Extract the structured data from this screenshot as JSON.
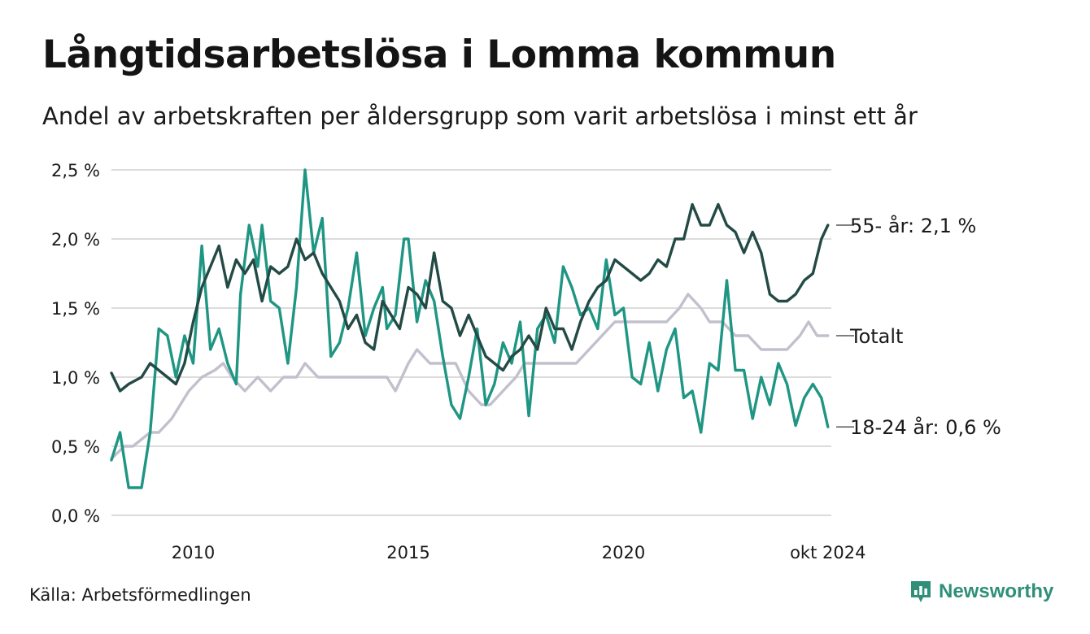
{
  "title": "Långtidsarbetslösa i Lomma kommun",
  "subtitle": "Andel av arbetskraften per åldersgrupp som varit arbetslösa i minst ett år",
  "source": "Källa: Arbetsförmedlingen",
  "brand": {
    "name": "Newsworthy",
    "color": "#2f8f79",
    "icon": "bar-chart-icon"
  },
  "chart_data": {
    "type": "line",
    "title": "Långtidsarbetslösa i Lomma kommun",
    "xlabel": "",
    "ylabel": "",
    "ylim": [
      0,
      2.5
    ],
    "xlim": [
      2008.1,
      2024.83
    ],
    "grid": true,
    "legend": "direct labels at line ends (right)",
    "yticks": [
      {
        "value": 0.0,
        "label": "0,0 %"
      },
      {
        "value": 0.5,
        "label": "0,5 %"
      },
      {
        "value": 1.0,
        "label": "1,0 %"
      },
      {
        "value": 1.5,
        "label": "1,5 %"
      },
      {
        "value": 2.0,
        "label": "2,0 %"
      },
      {
        "value": 2.5,
        "label": "2,5 %"
      }
    ],
    "xticks": [
      {
        "value": 2010,
        "label": "2010"
      },
      {
        "value": 2015,
        "label": "2015"
      },
      {
        "value": 2020,
        "label": "2020"
      },
      {
        "value": 2024.75,
        "label": "okt 2024"
      }
    ],
    "series": [
      {
        "name": "Totalt",
        "end_label": "Totalt",
        "color": "#c3c0cd",
        "x": [
          2008.1,
          2008.4,
          2008.6,
          2009.0,
          2009.2,
          2009.5,
          2009.7,
          2009.9,
          2010.2,
          2010.5,
          2010.7,
          2010.9,
          2011.2,
          2011.5,
          2011.8,
          2012.1,
          2012.4,
          2012.6,
          2012.9,
          2013.2,
          2013.5,
          2013.8,
          2014.2,
          2014.5,
          2014.7,
          2015.0,
          2015.2,
          2015.5,
          2015.8,
          2016.1,
          2016.4,
          2016.7,
          2016.9,
          2017.2,
          2017.5,
          2017.7,
          2018.0,
          2018.3,
          2018.6,
          2018.9,
          2019.2,
          2019.5,
          2019.8,
          2020.1,
          2020.4,
          2020.7,
          2021.0,
          2021.3,
          2021.5,
          2021.8,
          2022.0,
          2022.3,
          2022.6,
          2022.9,
          2023.2,
          2023.5,
          2023.8,
          2024.1,
          2024.3,
          2024.5,
          2024.75
        ],
        "values": [
          0.41,
          0.5,
          0.5,
          0.6,
          0.6,
          0.7,
          0.8,
          0.9,
          1.0,
          1.05,
          1.1,
          1.0,
          0.9,
          1.0,
          0.9,
          1.0,
          1.0,
          1.1,
          1.0,
          1.0,
          1.0,
          1.0,
          1.0,
          1.0,
          0.9,
          1.1,
          1.2,
          1.1,
          1.1,
          1.1,
          0.9,
          0.8,
          0.8,
          0.9,
          1.0,
          1.1,
          1.1,
          1.1,
          1.1,
          1.1,
          1.2,
          1.3,
          1.4,
          1.4,
          1.4,
          1.4,
          1.4,
          1.5,
          1.6,
          1.5,
          1.4,
          1.4,
          1.3,
          1.3,
          1.2,
          1.2,
          1.2,
          1.3,
          1.4,
          1.3,
          1.3
        ]
      },
      {
        "name": "18-24 år",
        "end_label": "18-24 år: 0,6 %",
        "color": "#1f9683",
        "x": [
          2008.1,
          2008.3,
          2008.5,
          2008.8,
          2009.0,
          2009.2,
          2009.4,
          2009.6,
          2009.8,
          2010.0,
          2010.2,
          2010.4,
          2010.6,
          2010.8,
          2011.0,
          2011.1,
          2011.3,
          2011.5,
          2011.6,
          2011.8,
          2012.0,
          2012.2,
          2012.4,
          2012.6,
          2012.8,
          2013.0,
          2013.2,
          2013.4,
          2013.6,
          2013.8,
          2014.0,
          2014.2,
          2014.4,
          2014.5,
          2014.7,
          2014.9,
          2015.0,
          2015.2,
          2015.4,
          2015.6,
          2015.8,
          2016.0,
          2016.2,
          2016.4,
          2016.6,
          2016.8,
          2017.0,
          2017.2,
          2017.4,
          2017.6,
          2017.8,
          2018.0,
          2018.2,
          2018.4,
          2018.6,
          2018.8,
          2019.0,
          2019.2,
          2019.4,
          2019.6,
          2019.8,
          2020.0,
          2020.2,
          2020.4,
          2020.6,
          2020.8,
          2021.0,
          2021.2,
          2021.4,
          2021.6,
          2021.8,
          2022.0,
          2022.2,
          2022.4,
          2022.6,
          2022.8,
          2023.0,
          2023.2,
          2023.4,
          2023.6,
          2023.8,
          2024.0,
          2024.2,
          2024.4,
          2024.6,
          2024.75
        ],
        "values": [
          0.4,
          0.6,
          0.2,
          0.2,
          0.6,
          1.35,
          1.3,
          1.0,
          1.3,
          1.1,
          1.95,
          1.2,
          1.35,
          1.1,
          0.95,
          1.6,
          2.1,
          1.8,
          2.1,
          1.55,
          1.5,
          1.1,
          1.65,
          2.5,
          1.9,
          2.15,
          1.15,
          1.25,
          1.5,
          1.9,
          1.3,
          1.5,
          1.65,
          1.35,
          1.45,
          2.0,
          2.0,
          1.4,
          1.7,
          1.55,
          1.15,
          0.8,
          0.7,
          1.0,
          1.35,
          0.8,
          0.95,
          1.25,
          1.1,
          1.4,
          0.72,
          1.35,
          1.45,
          1.25,
          1.8,
          1.65,
          1.45,
          1.5,
          1.35,
          1.85,
          1.45,
          1.5,
          1.0,
          0.95,
          1.25,
          0.9,
          1.2,
          1.35,
          0.85,
          0.9,
          0.6,
          1.1,
          1.05,
          1.7,
          1.05,
          1.05,
          0.7,
          1.0,
          0.8,
          1.1,
          0.95,
          0.65,
          0.85,
          0.95,
          0.85,
          0.64
        ]
      },
      {
        "name": "55- år",
        "end_label": "55- år: 2,1 %",
        "color": "#234a45",
        "x": [
          2008.1,
          2008.3,
          2008.5,
          2008.8,
          2009.0,
          2009.2,
          2009.4,
          2009.6,
          2009.8,
          2010.0,
          2010.2,
          2010.4,
          2010.6,
          2010.8,
          2011.0,
          2011.2,
          2011.4,
          2011.6,
          2011.8,
          2012.0,
          2012.2,
          2012.4,
          2012.6,
          2012.8,
          2013.0,
          2013.2,
          2013.4,
          2013.6,
          2013.8,
          2014.0,
          2014.2,
          2014.4,
          2014.6,
          2014.8,
          2015.0,
          2015.2,
          2015.4,
          2015.6,
          2015.8,
          2016.0,
          2016.2,
          2016.4,
          2016.6,
          2016.8,
          2017.0,
          2017.2,
          2017.4,
          2017.6,
          2017.8,
          2018.0,
          2018.2,
          2018.4,
          2018.6,
          2018.8,
          2019.0,
          2019.2,
          2019.4,
          2019.6,
          2019.8,
          2020.0,
          2020.2,
          2020.4,
          2020.6,
          2020.8,
          2021.0,
          2021.2,
          2021.4,
          2021.6,
          2021.8,
          2022.0,
          2022.2,
          2022.4,
          2022.6,
          2022.8,
          2023.0,
          2023.2,
          2023.4,
          2023.6,
          2023.8,
          2024.0,
          2024.2,
          2024.4,
          2024.6,
          2024.75
        ],
        "values": [
          1.03,
          0.9,
          0.95,
          1.0,
          1.1,
          1.05,
          1.0,
          0.95,
          1.1,
          1.4,
          1.65,
          1.8,
          1.95,
          1.65,
          1.85,
          1.75,
          1.85,
          1.55,
          1.8,
          1.75,
          1.8,
          2.0,
          1.85,
          1.9,
          1.75,
          1.65,
          1.55,
          1.35,
          1.45,
          1.25,
          1.2,
          1.55,
          1.45,
          1.35,
          1.65,
          1.6,
          1.5,
          1.9,
          1.55,
          1.5,
          1.3,
          1.45,
          1.3,
          1.15,
          1.1,
          1.05,
          1.15,
          1.2,
          1.3,
          1.2,
          1.5,
          1.35,
          1.35,
          1.2,
          1.4,
          1.55,
          1.65,
          1.7,
          1.85,
          1.8,
          1.75,
          1.7,
          1.75,
          1.85,
          1.8,
          2.0,
          2.0,
          2.25,
          2.1,
          2.1,
          2.25,
          2.1,
          2.05,
          1.9,
          2.05,
          1.9,
          1.6,
          1.55,
          1.55,
          1.6,
          1.7,
          1.75,
          2.0,
          2.1
        ]
      }
    ]
  }
}
